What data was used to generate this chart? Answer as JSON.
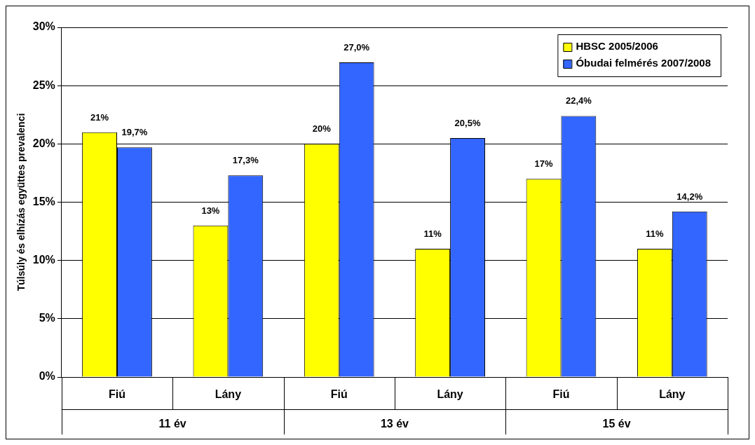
{
  "chart_data": {
    "type": "bar",
    "ylabel": "Túlsúly és elhízás együttes prevalenci",
    "categories": [
      "Fiú",
      "Lány",
      "Fiú",
      "Lány",
      "Fiú",
      "Lány"
    ],
    "annotations": [
      "11 év",
      "13 év",
      "15 év"
    ],
    "series": [
      {
        "name": "HBSC 2005/2006",
        "color": "#ffff00",
        "values": [
          21,
          13,
          20,
          11,
          17,
          11
        ],
        "value_labels": [
          "21%",
          "13%",
          "20%",
          "11%",
          "17%",
          "11%"
        ]
      },
      {
        "name": "Óbudai felmérés 2007/2008",
        "color": "#3366ff",
        "values": [
          19.7,
          17.3,
          27.0,
          20.5,
          22.4,
          14.2
        ],
        "value_labels": [
          "19,7%",
          "17,3%",
          "27,0%",
          "20,5%",
          "22,4%",
          "14,2%"
        ]
      }
    ],
    "ylim": [
      0,
      30
    ],
    "yticks": [
      {
        "value": 0,
        "label": "0%"
      },
      {
        "value": 5,
        "label": "5%"
      },
      {
        "value": 10,
        "label": "10%"
      },
      {
        "value": 15,
        "label": "15%"
      },
      {
        "value": 20,
        "label": "20%"
      },
      {
        "value": 25,
        "label": "25%"
      },
      {
        "value": 30,
        "label": "30%"
      }
    ],
    "grid": "y",
    "legend": "top right"
  }
}
